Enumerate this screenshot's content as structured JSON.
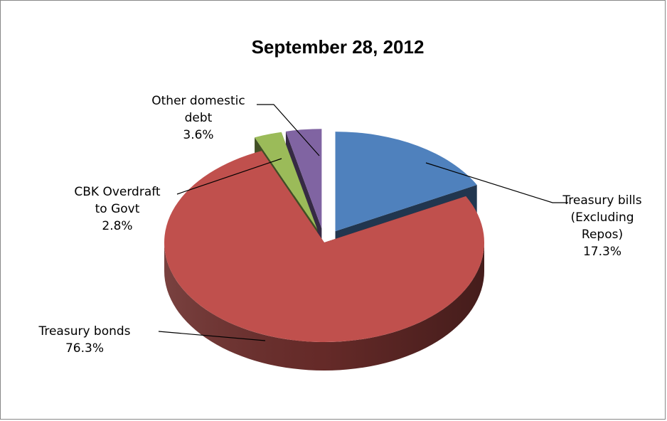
{
  "chart_data": {
    "type": "pie",
    "title": "September  28, 2012",
    "slices": [
      {
        "name": "Treasury bills (Excluding Repos)",
        "label_lines": [
          "Treasury bills",
          "(Excluding",
          "Repos)"
        ],
        "value": 17.3,
        "value_label": "17.3%",
        "color": "#4F81BD"
      },
      {
        "name": "Treasury bonds",
        "label_lines": [
          "Treasury bonds"
        ],
        "value": 76.3,
        "value_label": "76.3%",
        "color": "#C0504D"
      },
      {
        "name": "CBK Overdraft to Govt",
        "label_lines": [
          "CBK Overdraft",
          "to Govt"
        ],
        "value": 2.8,
        "value_label": "2.8%",
        "color": "#9BBB59"
      },
      {
        "name": "Other domestic debt",
        "label_lines": [
          "Other domestic",
          "debt"
        ],
        "value": 3.6,
        "value_label": "3.6%",
        "color": "#8064A2"
      }
    ],
    "legend": "none",
    "style": "3d-exploded"
  }
}
